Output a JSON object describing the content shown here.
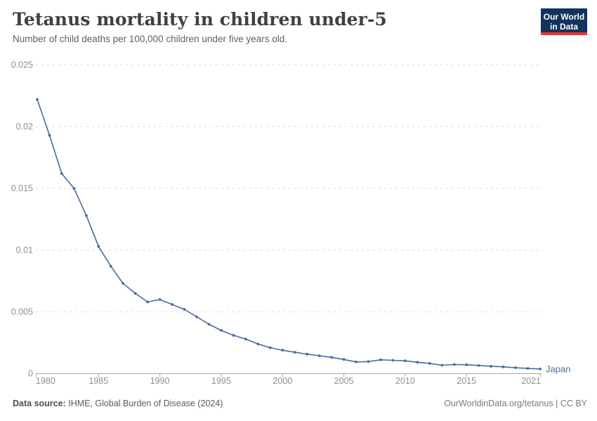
{
  "header": {
    "title": "Tetanus mortality in children under-5",
    "subtitle": "Number of child deaths per 100,000 children under five years old.",
    "logo": {
      "line1": "Our World",
      "line2": "in Data"
    }
  },
  "footer": {
    "source_label": "Data source:",
    "source_text": "IHME, Global Burden of Disease (2024)",
    "right_text": "OurWorldinData.org/tetanus | CC BY"
  },
  "chart_data": {
    "type": "line",
    "title": "Tetanus mortality in children under-5",
    "subtitle": "Number of child deaths per 100,000 children under five years old.",
    "xlabel": "",
    "ylabel": "",
    "xlim": [
      1980,
      2021
    ],
    "ylim": [
      0,
      0.025
    ],
    "grid": "horizontal-dashed",
    "legend_position": "end-of-line",
    "xticks": [
      1980,
      1985,
      1990,
      1995,
      2000,
      2005,
      2010,
      2015,
      2021
    ],
    "yticks": [
      0,
      0.005,
      0.01,
      0.015,
      0.02,
      0.025
    ],
    "ytick_labels": [
      "0",
      "0.005",
      "0.01",
      "0.015",
      "0.02",
      "0.025"
    ],
    "series": [
      {
        "name": "Japan",
        "x": [
          1980,
          1981,
          1982,
          1983,
          1984,
          1985,
          1986,
          1987,
          1988,
          1989,
          1990,
          1991,
          1992,
          1993,
          1994,
          1995,
          1996,
          1997,
          1998,
          1999,
          2000,
          2001,
          2002,
          2003,
          2004,
          2005,
          2006,
          2007,
          2008,
          2009,
          2010,
          2011,
          2012,
          2013,
          2014,
          2015,
          2016,
          2017,
          2018,
          2019,
          2020,
          2021
        ],
        "values": [
          0.0222,
          0.0193,
          0.0162,
          0.015,
          0.0128,
          0.0103,
          0.0087,
          0.0073,
          0.0065,
          0.0058,
          0.006,
          0.0056,
          0.0052,
          0.0046,
          0.004,
          0.0035,
          0.0031,
          0.0028,
          0.0024,
          0.0021,
          0.0019,
          0.00173,
          0.00158,
          0.00145,
          0.00132,
          0.00115,
          0.00095,
          0.00098,
          0.00112,
          0.00108,
          0.00104,
          0.00092,
          0.00083,
          0.00068,
          0.00074,
          0.00072,
          0.00066,
          0.0006,
          0.00055,
          0.00048,
          0.00042,
          0.00038
        ]
      }
    ],
    "colors": {
      "line": "#4c6a9c",
      "grid": "#dddddd",
      "axis": "#a8a8a8",
      "tick_label": "#8f8f8f",
      "series_label": "#4c6a9c",
      "logo_bg": "#12335d",
      "logo_accent": "#e5352c"
    }
  }
}
